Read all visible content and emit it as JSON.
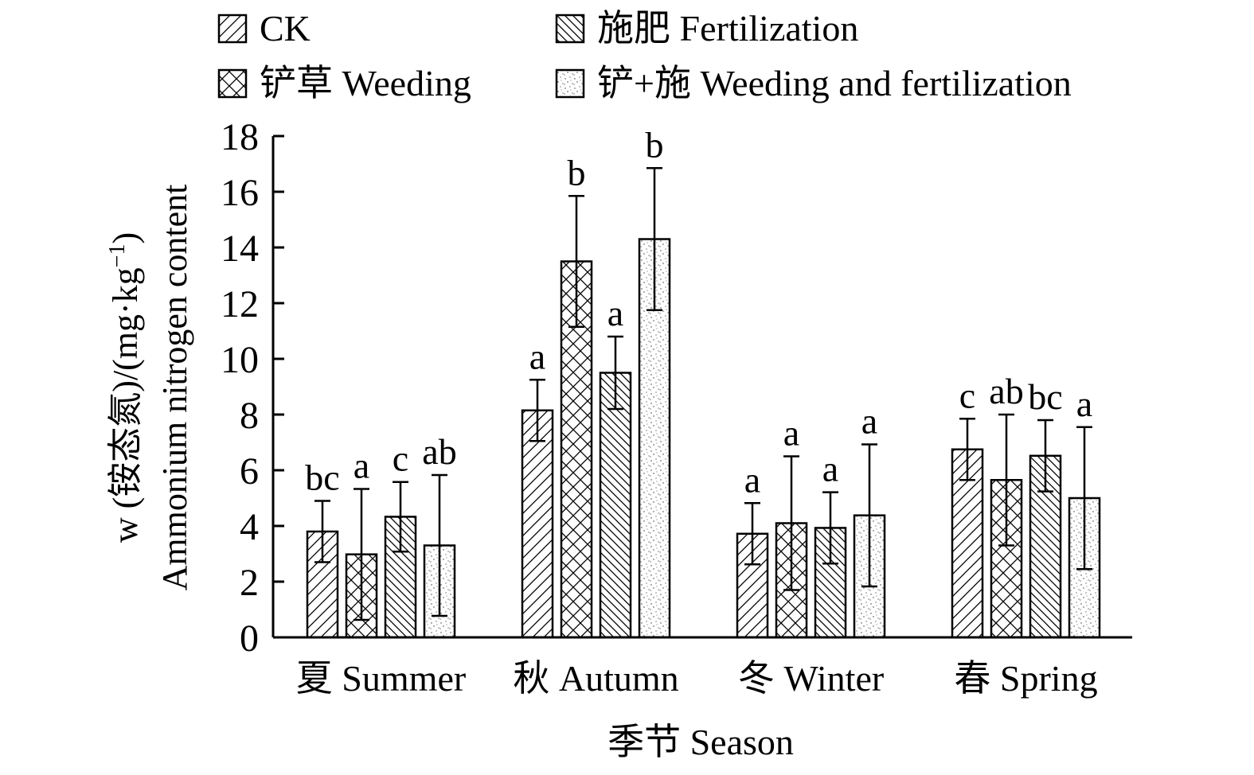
{
  "chart_data": {
    "type": "bar",
    "categories": [
      "夏 Summer",
      "秋 Autumn",
      "冬 Winter",
      "春 Spring"
    ],
    "series": [
      {
        "name": "CK",
        "pattern": "diag-right",
        "values": [
          3.8,
          8.15,
          3.72,
          6.75
        ],
        "errors": [
          1.1,
          1.1,
          1.1,
          1.1
        ],
        "letters": [
          "bc",
          "a",
          "a",
          "c"
        ]
      },
      {
        "name": "铲草 Weeding",
        "pattern": "crosshatch",
        "values": [
          2.98,
          13.5,
          4.1,
          5.65
        ],
        "errors": [
          2.35,
          2.35,
          2.4,
          2.35
        ],
        "letters": [
          "a",
          "b",
          "a",
          "ab"
        ]
      },
      {
        "name": "施肥 Fertilization",
        "pattern": "diag-left",
        "values": [
          4.33,
          9.5,
          3.93,
          6.52
        ],
        "errors": [
          1.25,
          1.3,
          1.28,
          1.28
        ],
        "letters": [
          "c",
          "a",
          "a",
          "bc"
        ]
      },
      {
        "name": "铲+施 Weeding and fertilization",
        "pattern": "dots",
        "values": [
          3.3,
          14.3,
          4.38,
          5.0
        ],
        "errors": [
          2.53,
          2.55,
          2.55,
          2.55
        ],
        "letters": [
          "ab",
          "b",
          "a",
          "a"
        ]
      }
    ],
    "xlabel": "季节 Season",
    "ylabel_line1": "w (铵态氮)/(mg·kg",
    "ylabel_sup": "−1",
    "ylabel_line1_end": ")",
    "ylabel_line2": "Ammonium nitrogen content",
    "ylim": [
      0,
      18
    ],
    "yticks": [
      "0",
      "2",
      "4",
      "6",
      "8",
      "10",
      "12",
      "14",
      "16",
      "18"
    ],
    "grid": false,
    "legend_position": "top"
  }
}
